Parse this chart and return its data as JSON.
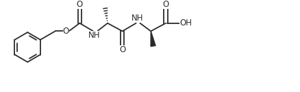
{
  "bg_color": "#ffffff",
  "line_color": "#2a2a2a",
  "line_width": 1.3,
  "font_size": 8.5,
  "figsize": [
    4.38,
    1.34
  ],
  "dpi": 100,
  "xlim": [
    0,
    10.5
  ],
  "ylim": [
    0,
    3.1
  ]
}
